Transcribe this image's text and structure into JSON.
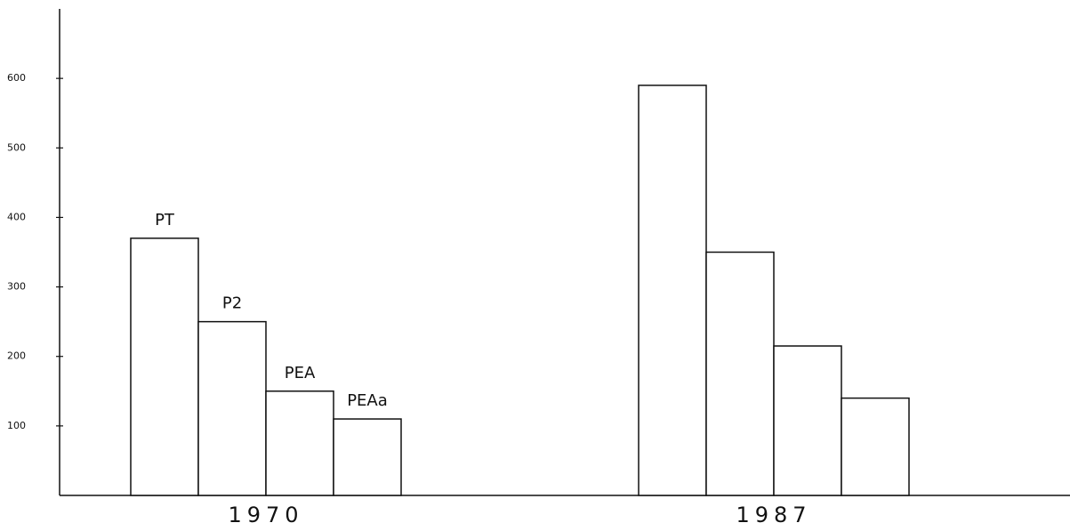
{
  "chart_data": {
    "type": "bar",
    "categories": [
      "1970",
      "1987"
    ],
    "series": [
      {
        "name": "PT",
        "color": "#ffffff",
        "values": [
          370,
          590
        ]
      },
      {
        "name": "P2",
        "color": "#ffffff",
        "values": [
          250,
          350
        ]
      },
      {
        "name": "PEA",
        "color": "#ffffff",
        "values": [
          150,
          215
        ]
      },
      {
        "name": "PEAa",
        "color": "#ffffff",
        "values": [
          110,
          140
        ]
      }
    ],
    "ylim": [
      0,
      700
    ],
    "yticks": [
      100,
      200,
      300,
      400,
      500,
      600
    ],
    "grid": false
  }
}
